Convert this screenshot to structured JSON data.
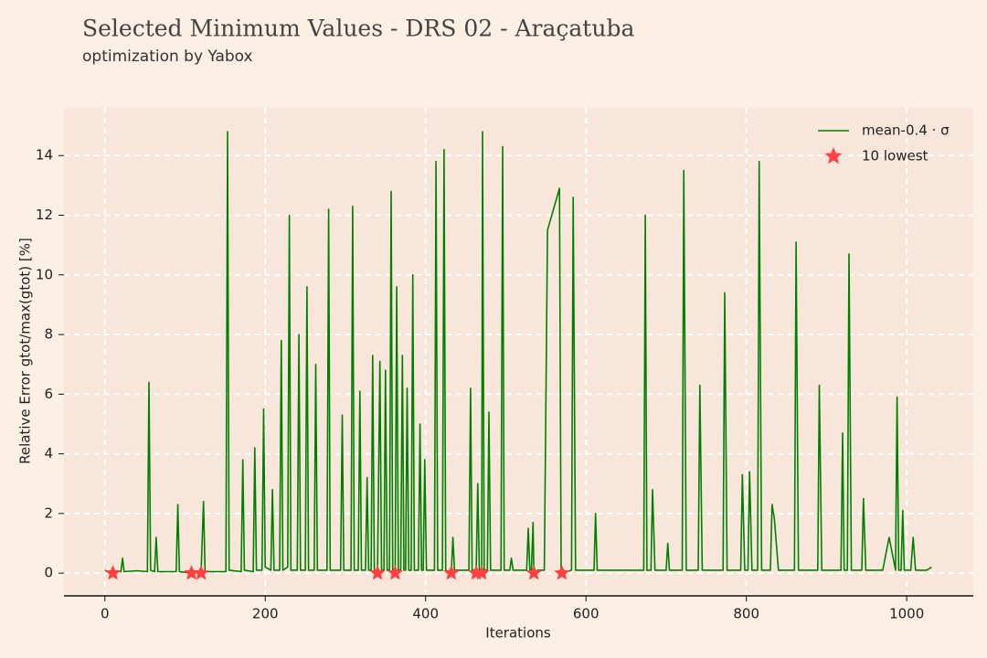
{
  "chart_data": {
    "type": "line",
    "title": "Selected Minimum Values - DRS 02 - Araçatuba",
    "subtitle": "optimization by Yabox",
    "x_label": "Iterations",
    "y_label": "Relative Error gtot/max(gtot) [%]",
    "xlim": [
      -51,
      1083
    ],
    "ylim": [
      -0.7,
      15.6
    ],
    "xticks": [
      0,
      200,
      400,
      600,
      800,
      1000
    ],
    "yticks": [
      0,
      2,
      4,
      6,
      8,
      10,
      12,
      14
    ],
    "grid": true,
    "legend": "upper right",
    "series": [
      {
        "name": "mean-0.4 · σ",
        "color": "#008000",
        "mode": "line",
        "x": [
          0,
          5,
          10,
          15,
          20,
          22,
          24,
          40,
          53,
          55,
          57,
          62,
          64,
          66,
          89,
          91,
          93,
          108,
          115,
          120,
          123,
          125,
          151,
          153,
          155,
          170,
          172,
          174,
          185,
          187,
          189,
          196,
          198,
          200,
          207,
          209,
          211,
          218,
          220,
          222,
          228,
          230,
          232,
          240,
          242,
          244,
          250,
          252,
          254,
          261,
          263,
          265,
          277,
          279,
          281,
          294,
          296,
          298,
          307,
          309,
          311,
          316,
          318,
          320,
          325,
          327,
          329,
          332,
          334,
          336,
          340,
          343,
          345,
          348,
          350,
          352,
          355,
          357,
          359,
          362,
          364,
          366,
          369,
          371,
          373,
          375,
          377,
          379,
          382,
          384,
          386,
          391,
          393,
          395,
          397,
          399,
          401,
          411,
          413,
          415,
          421,
          423,
          425,
          432,
          434,
          436,
          454,
          456,
          458,
          461,
          463,
          465,
          467,
          469,
          470,
          471,
          473,
          477,
          479,
          481,
          494,
          496,
          498,
          505,
          507,
          509,
          526,
          528,
          530,
          532,
          534,
          535,
          540,
          548,
          552,
          567,
          569,
          570,
          582,
          584,
          587,
          610,
          612,
          614,
          650,
          672,
          674,
          676,
          681,
          683,
          686,
          700,
          702,
          704,
          720,
          722,
          725,
          740,
          742,
          745,
          771,
          773,
          776,
          793,
          795,
          798,
          802,
          804,
          807,
          814,
          816,
          819,
          830,
          832,
          835,
          840,
          860,
          862,
          865,
          889,
          891,
          894,
          918,
          920,
          922,
          926,
          928,
          931,
          944,
          946,
          949,
          970,
          978,
          986,
          988,
          990,
          993,
          995,
          997,
          1005,
          1008,
          1011,
          1025,
          1031
        ],
        "values": [
          0.1,
          0.02,
          0.0,
          0.08,
          0.05,
          0.5,
          0.05,
          0.08,
          0.05,
          6.4,
          0.1,
          0.05,
          1.2,
          0.05,
          0.05,
          2.3,
          0.05,
          0.0,
          0.05,
          0.0,
          2.4,
          0.05,
          0.05,
          14.8,
          0.1,
          0.05,
          3.8,
          0.1,
          0.05,
          4.2,
          0.1,
          0.1,
          5.5,
          0.2,
          0.1,
          2.8,
          0.1,
          0.1,
          7.8,
          0.1,
          0.2,
          12.0,
          0.1,
          0.1,
          8.0,
          0.1,
          0.1,
          9.6,
          0.1,
          0.1,
          7.0,
          0.1,
          0.1,
          12.2,
          0.1,
          0.1,
          5.3,
          0.1,
          0.1,
          12.3,
          0.1,
          0.1,
          6.1,
          0.1,
          0.1,
          3.2,
          0.1,
          0.1,
          7.3,
          0.1,
          0.0,
          7.1,
          0.1,
          0.1,
          6.8,
          0.1,
          0.1,
          12.8,
          0.1,
          0.0,
          9.6,
          0.1,
          0.1,
          7.3,
          0.1,
          0.1,
          6.2,
          0.1,
          0.1,
          10.0,
          0.1,
          0.1,
          5.0,
          0.1,
          0.1,
          3.8,
          0.1,
          0.1,
          13.8,
          0.1,
          0.1,
          14.2,
          0.1,
          0.0,
          1.2,
          0.1,
          0.1,
          6.2,
          0.1,
          0.1,
          0.0,
          3.0,
          0.1,
          0.1,
          0.0,
          14.8,
          0.1,
          0.1,
          5.4,
          0.1,
          0.1,
          14.3,
          0.1,
          0.1,
          0.5,
          0.1,
          0.1,
          1.5,
          0.1,
          0.1,
          1.7,
          0.0,
          0.1,
          0.1,
          11.5,
          12.9,
          0.1,
          0.0,
          0.1,
          12.6,
          0.1,
          0.1,
          2.0,
          0.1,
          0.1,
          0.1,
          12.0,
          0.1,
          0.1,
          2.8,
          0.1,
          0.1,
          1.0,
          0.1,
          0.1,
          13.5,
          0.1,
          0.1,
          6.3,
          0.1,
          0.1,
          9.4,
          0.1,
          0.1,
          3.3,
          0.1,
          0.1,
          3.4,
          0.1,
          0.1,
          13.8,
          0.1,
          0.1,
          2.3,
          1.8,
          0.1,
          0.1,
          11.1,
          0.1,
          0.1,
          6.3,
          0.1,
          0.1,
          4.7,
          0.1,
          0.1,
          10.7,
          0.1,
          0.1,
          2.5,
          0.1,
          0.1,
          1.2,
          0.1,
          5.9,
          0.1,
          0.1,
          2.1,
          0.1,
          0.1,
          1.2,
          0.1,
          0.1,
          0.2
        ]
      },
      {
        "name": "10 lowest",
        "color": "#ff4040",
        "mode": "marker",
        "x": [
          10,
          108,
          120,
          340,
          362,
          432,
          463,
          470,
          535,
          570
        ],
        "values": [
          0,
          0,
          0,
          0,
          0,
          0,
          0,
          0,
          0,
          0
        ]
      }
    ]
  }
}
